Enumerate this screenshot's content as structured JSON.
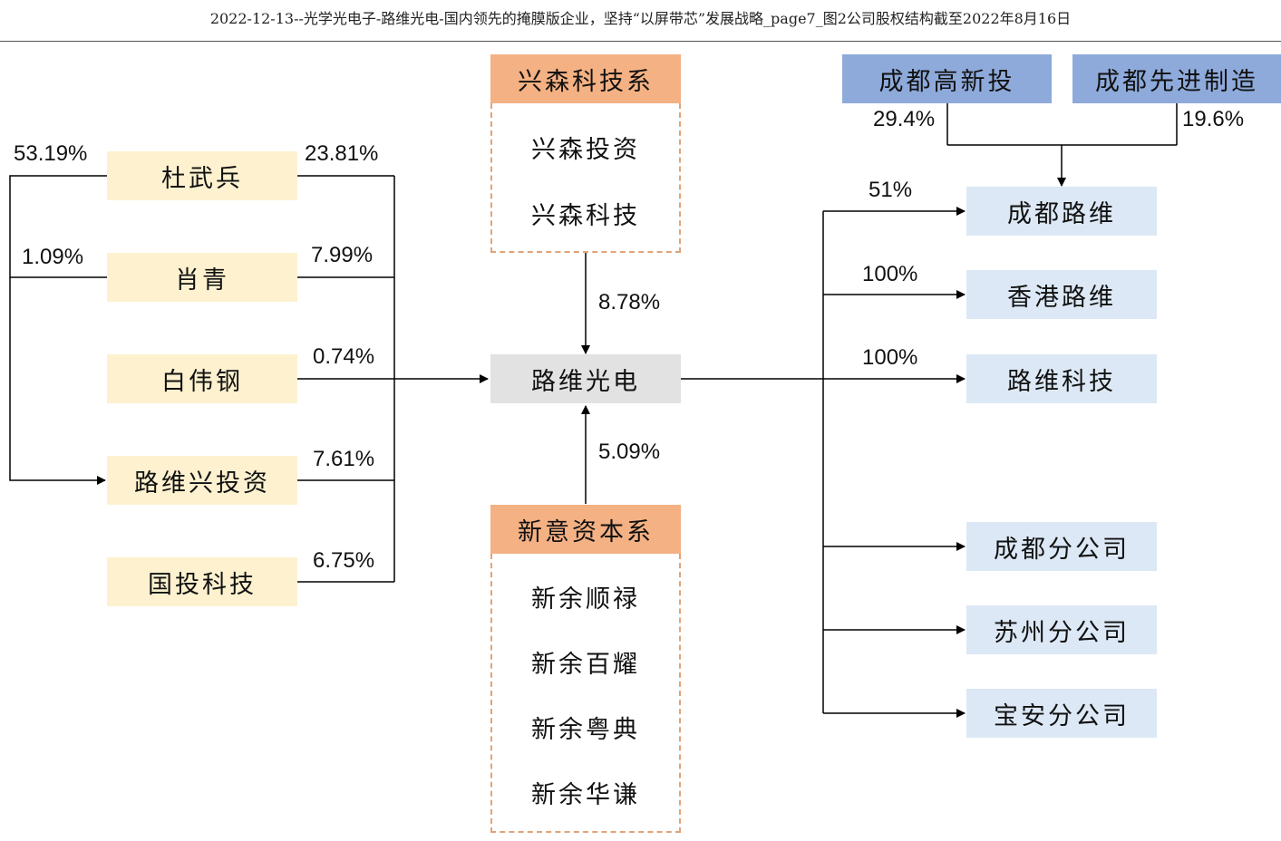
{
  "caption": "2022-12-13--光学光电子-路维光电-国内领先的掩膜版企业，坚持“以屏带芯”发展战略_page7_图2公司股权结构截至2022年8月16日",
  "colors": {
    "shareholder_fill": "#fdf1cf",
    "subsidiary_fill": "#dce8f5",
    "company_fill": "#e2e2e2",
    "investor_fill": "#8eaadb",
    "group_fill": "#f4b183",
    "group_border": "#e0a478"
  },
  "shareholders": [
    {
      "name": "杜武兵",
      "left_pct": "53.19%",
      "right_pct": "23.81%"
    },
    {
      "name": "肖青",
      "left_pct": "1.09%",
      "right_pct": "7.99%"
    },
    {
      "name": "白伟钢",
      "right_pct": "0.74%"
    },
    {
      "name": "路维兴投资",
      "right_pct": "7.61%"
    },
    {
      "name": "国投科技",
      "right_pct": "6.75%"
    }
  ],
  "company": "路维光电",
  "group_top": {
    "title": "兴森科技系",
    "members": [
      "兴森投资",
      "兴森科技"
    ],
    "pct": "8.78%"
  },
  "group_bottom": {
    "title": "新意资本系",
    "members": [
      "新余顺禄",
      "新余百耀",
      "新余粤典",
      "新余华谦"
    ],
    "pct": "5.09%"
  },
  "investors": [
    {
      "name": "成都高新投",
      "pct": "29.4%"
    },
    {
      "name": "成都先进制造",
      "pct": "19.6%"
    }
  ],
  "subsidiaries": [
    {
      "name": "成都路维",
      "pct": "51%"
    },
    {
      "name": "香港路维",
      "pct": "100%"
    },
    {
      "name": "路维科技",
      "pct": "100%"
    }
  ],
  "branches": [
    "成都分公司",
    "苏州分公司",
    "宝安分公司"
  ]
}
